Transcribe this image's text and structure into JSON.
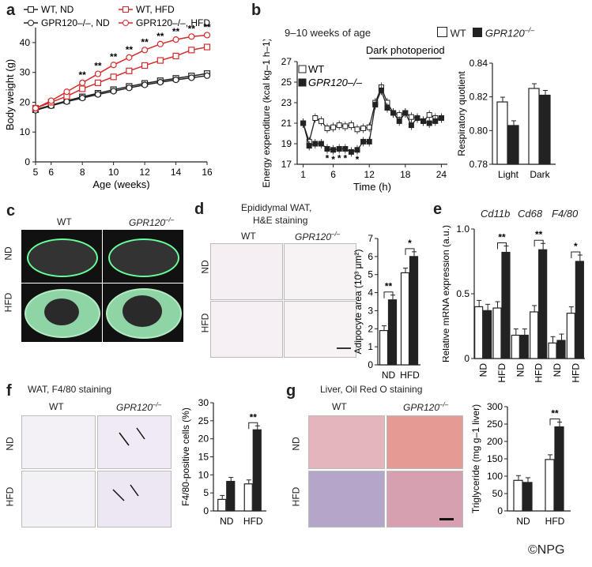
{
  "copyright": "©NPG",
  "panels": {
    "a": {
      "label": "a"
    },
    "b": {
      "label": "b",
      "title": "9–10 weeks of age",
      "legend_wt": "WT",
      "legend_ko": "GPR120",
      "ko_sup": "–/–",
      "dark_label": "Dark photoperiod"
    },
    "c": {
      "label": "c",
      "col1": "WT",
      "col2": "GPR120",
      "ko_sup": "–/–",
      "row1": "ND",
      "row2": "HFD"
    },
    "d": {
      "label": "d",
      "title1": "Epididymal WAT,",
      "title2": "H&E staining",
      "col1": "WT",
      "col2": "GPR120",
      "ko_sup": "–/–",
      "row1": "ND",
      "row2": "HFD"
    },
    "e": {
      "label": "e",
      "gene1": "Cd11b",
      "gene2": "Cd68",
      "gene3": "F4/80"
    },
    "f": {
      "label": "f",
      "title": "WAT, F4/80 staining",
      "col1": "WT",
      "col2": "GPR120",
      "ko_sup": "–/–",
      "row1": "ND",
      "row2": "HFD"
    },
    "g": {
      "label": "g",
      "title": "Liver, Oil Red O staining",
      "col1": "WT",
      "col2": "GPR120",
      "ko_sup": "–/–",
      "row1": "ND",
      "row2": "HFD"
    }
  },
  "chart_data": [
    {
      "id": "a",
      "type": "line",
      "xlabel": "Age (weeks)",
      "ylabel": "Body weight (g)",
      "xlim": [
        5,
        16
      ],
      "ylim": [
        0,
        45
      ],
      "xticks": [
        "5",
        "6",
        "8",
        "10",
        "12",
        "14",
        "16"
      ],
      "yticks": [
        "0",
        "10",
        "20",
        "30",
        "40"
      ],
      "x": [
        5,
        6,
        7,
        8,
        9,
        10,
        11,
        12,
        13,
        14,
        15,
        16
      ],
      "series": [
        {
          "name": "WT, ND",
          "color": "#222222",
          "marker": "square",
          "values": [
            17.5,
            19,
            20.5,
            21.8,
            23,
            24.2,
            25.3,
            26.3,
            27.2,
            28,
            28.8,
            29.6
          ]
        },
        {
          "name": "GPR120–/–, ND",
          "color": "#222222",
          "marker": "circle",
          "values": [
            17.3,
            18.8,
            20.2,
            21.4,
            22.6,
            23.7,
            24.8,
            25.8,
            26.7,
            27.5,
            28.2,
            28.9
          ]
        },
        {
          "name": "WT, HFD",
          "color": "#d42a2a",
          "marker": "square",
          "values": [
            18,
            20,
            22,
            24.5,
            26.5,
            28.5,
            30.5,
            32.3,
            34,
            35.5,
            37.5,
            38.5
          ]
        },
        {
          "name": "GPR120–/–, HFD",
          "color": "#d42a2a",
          "marker": "circle",
          "values": [
            18,
            20.5,
            23.5,
            26.5,
            29.5,
            32.5,
            35,
            37.5,
            39.5,
            41,
            42,
            42.5
          ]
        }
      ],
      "legend": [
        "WT, ND",
        "GPR120–/–, ND",
        "WT, HFD",
        "GPR120–/–, HFD"
      ],
      "sig_label": "**"
    },
    {
      "id": "b-energy",
      "type": "line",
      "xlabel": "Time (h)",
      "ylabel": "Energy expenditure (kcal kg–1 h–1)",
      "xlim": [
        0,
        25
      ],
      "ylim": [
        17,
        27
      ],
      "xticks": [
        "1",
        "6",
        "12",
        "18",
        "24"
      ],
      "yticks": [
        "17",
        "19",
        "21",
        "23",
        "25",
        "27"
      ],
      "x": [
        1,
        2,
        3,
        4,
        5,
        6,
        7,
        8,
        9,
        10,
        11,
        12,
        13,
        14,
        15,
        16,
        17,
        18,
        19,
        20,
        21,
        22,
        23,
        24
      ],
      "series": [
        {
          "name": "WT",
          "values": [
            21,
            19.2,
            21.5,
            21.2,
            20.5,
            20.6,
            20.8,
            20.7,
            20.8,
            20.4,
            20.5,
            20.6,
            23,
            24.5,
            23,
            22,
            21.8,
            22,
            21.6,
            21.5,
            21.2,
            21.8,
            21.5,
            21.5
          ]
        },
        {
          "name": "GPR120–/–",
          "values": [
            21,
            18.8,
            19,
            19,
            18.5,
            18.4,
            18.5,
            18.5,
            18.2,
            18.4,
            19.2,
            19.2,
            22.8,
            24.2,
            22.5,
            22,
            21.2,
            22,
            20.8,
            21.5,
            21.2,
            21,
            21.2,
            21.5
          ]
        }
      ],
      "legend": [
        "WT",
        "GPR120–/–"
      ],
      "sig_label": "*"
    },
    {
      "id": "b-rq",
      "type": "bar",
      "ylabel": "Respiratory quotient",
      "categories": [
        "Light",
        "Dark"
      ],
      "ylim": [
        0.78,
        0.84
      ],
      "yticks": [
        "0.78",
        "0.80",
        "0.82",
        "0.84"
      ],
      "series": [
        {
          "name": "WT",
          "values": [
            0.817,
            0.825
          ]
        },
        {
          "name": "GPR120–/–",
          "values": [
            0.803,
            0.821
          ]
        }
      ]
    },
    {
      "id": "d",
      "type": "bar",
      "ylabel": "Adipocyte area (10³ μm²)",
      "categories": [
        "ND",
        "HFD"
      ],
      "ylim": [
        0,
        7
      ],
      "yticks": [
        "0",
        "1",
        "2",
        "3",
        "4",
        "5",
        "6",
        "7"
      ],
      "series": [
        {
          "name": "WT",
          "values": [
            1.9,
            5.1
          ]
        },
        {
          "name": "GPR120–/–",
          "values": [
            3.6,
            6.0
          ]
        }
      ],
      "sig_label": "**",
      "sig_label_2": "*"
    },
    {
      "id": "e",
      "type": "bar",
      "ylabel": "Relative mRNA expression (a.u.)",
      "categories": [
        "ND",
        "HFD",
        "ND",
        "HFD",
        "ND",
        "HFD"
      ],
      "ylim": [
        0,
        1.0
      ],
      "yticks": [
        "0",
        "0.5",
        "1.0"
      ],
      "series": [
        {
          "name": "WT",
          "values": [
            0.4,
            0.39,
            0.18,
            0.36,
            0.12,
            0.35
          ]
        },
        {
          "name": "GPR120–/–",
          "values": [
            0.37,
            0.82,
            0.18,
            0.84,
            0.14,
            0.75
          ]
        }
      ],
      "sig_label": "**",
      "sig_label_2": "*"
    },
    {
      "id": "f",
      "type": "bar",
      "ylabel": "F4/80-positive cells (%)",
      "categories": [
        "ND",
        "HFD"
      ],
      "ylim": [
        0,
        30
      ],
      "yticks": [
        "0",
        "5",
        "10",
        "15",
        "20",
        "25",
        "30"
      ],
      "series": [
        {
          "name": "WT",
          "values": [
            3.2,
            7.5
          ]
        },
        {
          "name": "GPR120–/–",
          "values": [
            8.2,
            22.5
          ]
        }
      ],
      "sig_label": "**"
    },
    {
      "id": "g",
      "type": "bar",
      "ylabel": "Triglyceride (mg g–1 liver)",
      "categories": [
        "ND",
        "HFD"
      ],
      "ylim": [
        0,
        300
      ],
      "yticks": [
        "0",
        "50",
        "100",
        "150",
        "200",
        "250",
        "300"
      ],
      "series": [
        {
          "name": "WT",
          "values": [
            88,
            148
          ]
        },
        {
          "name": "GPR120–/–",
          "values": [
            82,
            242
          ]
        }
      ],
      "sig_label": "**"
    }
  ]
}
